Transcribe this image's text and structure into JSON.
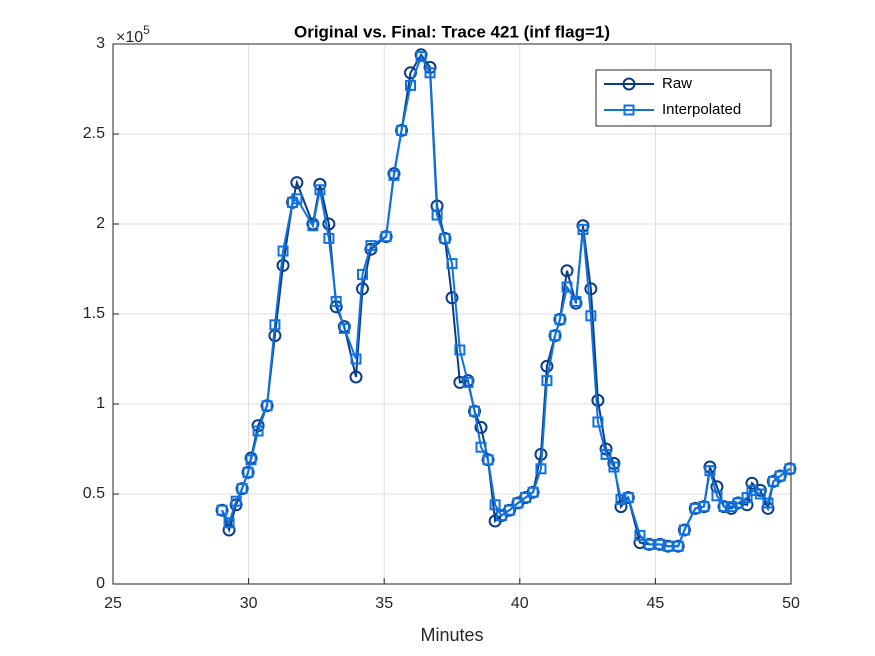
{
  "chart_data": {
    "type": "line",
    "title": "Original vs. Final: Trace 421 (inf flag=1)",
    "x_label": "Minutes",
    "y_multiplier": {
      "base": "×10",
      "exponent": "5"
    },
    "x": [
      29.02,
      29.28,
      29.54,
      29.76,
      29.98,
      30.09,
      30.35,
      30.68,
      30.97,
      31.27,
      31.62,
      31.78,
      32.37,
      32.63,
      32.96,
      33.23,
      33.53,
      33.96,
      34.2,
      34.51,
      35.07,
      35.36,
      35.64,
      35.97,
      36.36,
      36.69,
      36.95,
      37.24,
      37.5,
      37.79,
      38.09,
      38.33,
      38.57,
      38.83,
      39.09,
      39.32,
      39.62,
      39.93,
      40.21,
      40.49,
      40.78,
      41.0,
      41.3,
      41.48,
      41.74,
      42.07,
      42.33,
      42.62,
      42.88,
      43.18,
      43.47,
      43.73,
      44.0,
      44.43,
      44.77,
      45.17,
      45.47,
      45.84,
      46.07,
      46.47,
      46.79,
      47.01,
      47.27,
      47.53,
      47.8,
      48.05,
      48.38,
      48.56,
      48.87,
      49.15,
      49.35,
      49.6,
      49.96
    ],
    "series": [
      {
        "name": "Raw",
        "color": "#0b3d87",
        "marker": "circle",
        "values": [
          0.41,
          0.3,
          0.44,
          0.53,
          0.62,
          0.7,
          0.88,
          0.99,
          1.38,
          1.77,
          2.12,
          2.23,
          2.0,
          2.22,
          2.0,
          1.54,
          1.43,
          1.15,
          1.64,
          1.86,
          1.93,
          2.28,
          2.52,
          2.84,
          2.94,
          2.87,
          2.1,
          1.92,
          1.59,
          1.12,
          1.13,
          0.96,
          0.87,
          0.69,
          0.35,
          0.38,
          0.41,
          0.45,
          0.48,
          0.51,
          0.72,
          1.21,
          1.38,
          1.47,
          1.74,
          1.56,
          1.99,
          1.64,
          1.02,
          0.75,
          0.67,
          0.43,
          0.48,
          0.23,
          0.22,
          0.22,
          0.21,
          0.21,
          0.3,
          0.42,
          0.43,
          0.65,
          0.54,
          0.43,
          0.42,
          0.45,
          0.44,
          0.56,
          0.52,
          0.42,
          0.57,
          0.6,
          0.64
        ]
      },
      {
        "name": "Interpolated",
        "color": "#0f72e0",
        "marker": "square",
        "values": [
          0.41,
          0.34,
          0.46,
          0.53,
          0.62,
          0.69,
          0.85,
          0.99,
          1.44,
          1.85,
          2.12,
          2.14,
          1.99,
          2.19,
          1.92,
          1.57,
          1.42,
          1.25,
          1.72,
          1.88,
          1.93,
          2.27,
          2.52,
          2.77,
          2.93,
          2.84,
          2.05,
          1.92,
          1.78,
          1.3,
          1.12,
          0.96,
          0.76,
          0.69,
          0.44,
          0.38,
          0.41,
          0.45,
          0.48,
          0.51,
          0.64,
          1.13,
          1.38,
          1.47,
          1.65,
          1.57,
          1.97,
          1.49,
          0.9,
          0.72,
          0.65,
          0.47,
          0.48,
          0.27,
          0.22,
          0.22,
          0.21,
          0.21,
          0.3,
          0.42,
          0.43,
          0.63,
          0.49,
          0.43,
          0.43,
          0.45,
          0.48,
          0.52,
          0.5,
          0.45,
          0.57,
          0.6,
          0.64
        ]
      }
    ],
    "xlim": [
      25,
      50
    ],
    "xticks": [
      25,
      30,
      35,
      40,
      45,
      50
    ],
    "ylim": [
      0,
      3
    ],
    "yticks": [
      0,
      0.5,
      1,
      1.5,
      2,
      2.5,
      3
    ],
    "grid": true,
    "legend": "top-right"
  }
}
